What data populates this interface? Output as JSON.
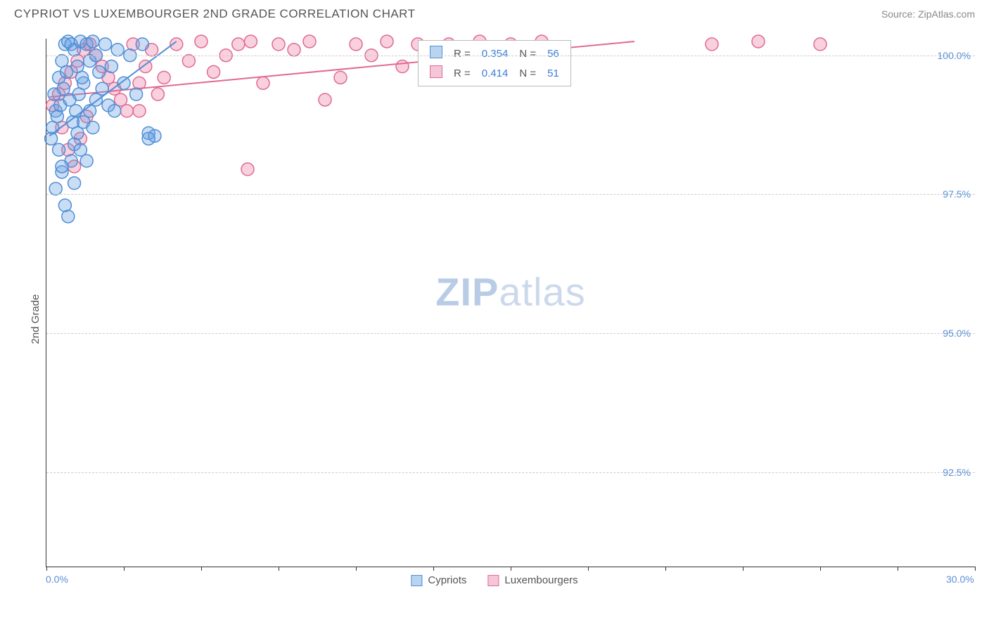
{
  "title": "CYPRIOT VS LUXEMBOURGER 2ND GRADE CORRELATION CHART",
  "source": "Source: ZipAtlas.com",
  "ylabel": "2nd Grade",
  "watermark_bold": "ZIP",
  "watermark_light": "atlas",
  "xlim": [
    0,
    30
  ],
  "ylim": [
    90.8,
    100.3
  ],
  "xticks": [
    0,
    2.5,
    5,
    7.5,
    10,
    12.5,
    15,
    17.5,
    20,
    22.5,
    25,
    27.5,
    30
  ],
  "yticks": [
    {
      "v": 100.0,
      "label": "100.0%"
    },
    {
      "v": 97.5,
      "label": "97.5%"
    },
    {
      "v": 95.0,
      "label": "95.0%"
    },
    {
      "v": 92.5,
      "label": "92.5%"
    }
  ],
  "x_left_label": "0.0%",
  "x_right_label": "30.0%",
  "grid_color": "#cccccc",
  "axis_color": "#333333",
  "tick_label_color": "#5a8fd6",
  "series": {
    "cypriots": {
      "label": "Cypriots",
      "fill": "rgba(99,159,227,0.35)",
      "stroke": "#4f8fd6",
      "swatch_fill": "#b9d4f0",
      "swatch_border": "#4f8fd6",
      "r_value": "0.354",
      "n_value": "56",
      "trend": {
        "x1": 0.1,
        "y1": 98.55,
        "x2": 4.2,
        "y2": 100.25
      },
      "points": [
        [
          0.15,
          98.5
        ],
        [
          0.2,
          98.7
        ],
        [
          0.3,
          99.0
        ],
        [
          0.25,
          99.3
        ],
        [
          0.4,
          99.6
        ],
        [
          0.5,
          99.9
        ],
        [
          0.6,
          100.2
        ],
        [
          0.7,
          100.25
        ],
        [
          0.8,
          100.2
        ],
        [
          0.9,
          100.1
        ],
        [
          1.0,
          99.8
        ],
        [
          1.1,
          100.25
        ],
        [
          1.2,
          99.5
        ],
        [
          0.35,
          98.9
        ],
        [
          0.45,
          99.1
        ],
        [
          0.55,
          99.4
        ],
        [
          0.65,
          99.7
        ],
        [
          0.75,
          99.2
        ],
        [
          0.85,
          98.8
        ],
        [
          0.95,
          99.0
        ],
        [
          1.05,
          99.3
        ],
        [
          1.15,
          99.6
        ],
        [
          1.3,
          100.2
        ],
        [
          1.4,
          99.9
        ],
        [
          1.5,
          100.25
        ],
        [
          1.6,
          100.0
        ],
        [
          1.7,
          99.7
        ],
        [
          1.8,
          99.4
        ],
        [
          1.9,
          100.2
        ],
        [
          2.0,
          99.1
        ],
        [
          2.1,
          99.8
        ],
        [
          0.4,
          98.3
        ],
        [
          0.5,
          97.9
        ],
        [
          0.6,
          97.3
        ],
        [
          0.7,
          97.1
        ],
        [
          0.8,
          98.1
        ],
        [
          0.9,
          98.4
        ],
        [
          1.0,
          98.6
        ],
        [
          1.2,
          98.8
        ],
        [
          1.4,
          99.0
        ],
        [
          1.6,
          99.2
        ],
        [
          2.3,
          100.1
        ],
        [
          2.5,
          99.5
        ],
        [
          2.7,
          100.0
        ],
        [
          2.9,
          99.3
        ],
        [
          3.1,
          100.2
        ],
        [
          3.3,
          98.6
        ],
        [
          3.5,
          98.55
        ],
        [
          3.3,
          98.5
        ],
        [
          2.2,
          99.0
        ],
        [
          1.3,
          98.1
        ],
        [
          0.5,
          98.0
        ],
        [
          0.3,
          97.6
        ],
        [
          1.1,
          98.3
        ],
        [
          0.9,
          97.7
        ],
        [
          1.5,
          98.7
        ]
      ]
    },
    "luxembourgers": {
      "label": "Luxembourgers",
      "fill": "rgba(236,120,160,0.35)",
      "stroke": "#e06a94",
      "swatch_fill": "#f5c6d7",
      "swatch_border": "#e06a94",
      "r_value": "0.414",
      "n_value": "51",
      "trend": {
        "x1": 0.1,
        "y1": 99.25,
        "x2": 19.0,
        "y2": 100.25
      },
      "points": [
        [
          0.2,
          99.1
        ],
        [
          0.4,
          99.3
        ],
        [
          0.6,
          99.5
        ],
        [
          0.8,
          99.7
        ],
        [
          1.0,
          99.9
        ],
        [
          1.2,
          100.1
        ],
        [
          1.4,
          100.2
        ],
        [
          1.6,
          100.0
        ],
        [
          1.8,
          99.8
        ],
        [
          2.0,
          99.6
        ],
        [
          2.2,
          99.4
        ],
        [
          2.4,
          99.2
        ],
        [
          2.6,
          99.0
        ],
        [
          2.8,
          100.2
        ],
        [
          3.0,
          99.5
        ],
        [
          3.2,
          99.8
        ],
        [
          3.4,
          100.1
        ],
        [
          3.6,
          99.3
        ],
        [
          3.8,
          99.6
        ],
        [
          4.2,
          100.2
        ],
        [
          4.6,
          99.9
        ],
        [
          5.0,
          100.25
        ],
        [
          5.4,
          99.7
        ],
        [
          5.8,
          100.0
        ],
        [
          6.2,
          100.2
        ],
        [
          6.6,
          100.25
        ],
        [
          7.0,
          99.5
        ],
        [
          7.5,
          100.2
        ],
        [
          8.0,
          100.1
        ],
        [
          8.5,
          100.25
        ],
        [
          9.0,
          99.2
        ],
        [
          9.5,
          99.6
        ],
        [
          10.0,
          100.2
        ],
        [
          10.5,
          100.0
        ],
        [
          11.0,
          100.25
        ],
        [
          11.5,
          99.8
        ],
        [
          12.0,
          100.2
        ],
        [
          6.5,
          97.95
        ],
        [
          0.5,
          98.7
        ],
        [
          0.7,
          98.3
        ],
        [
          0.9,
          98.0
        ],
        [
          1.1,
          98.5
        ],
        [
          1.3,
          98.9
        ],
        [
          13.0,
          100.2
        ],
        [
          14.0,
          100.25
        ],
        [
          15.0,
          100.2
        ],
        [
          16.0,
          100.25
        ],
        [
          21.5,
          100.2
        ],
        [
          23.0,
          100.25
        ],
        [
          25.0,
          100.2
        ],
        [
          3.0,
          99.0
        ]
      ]
    }
  },
  "stat_box_labels": {
    "R": "R =",
    "N": "N ="
  },
  "marker_radius": 9,
  "marker_stroke_width": 1.5,
  "trend_stroke_width": 2
}
